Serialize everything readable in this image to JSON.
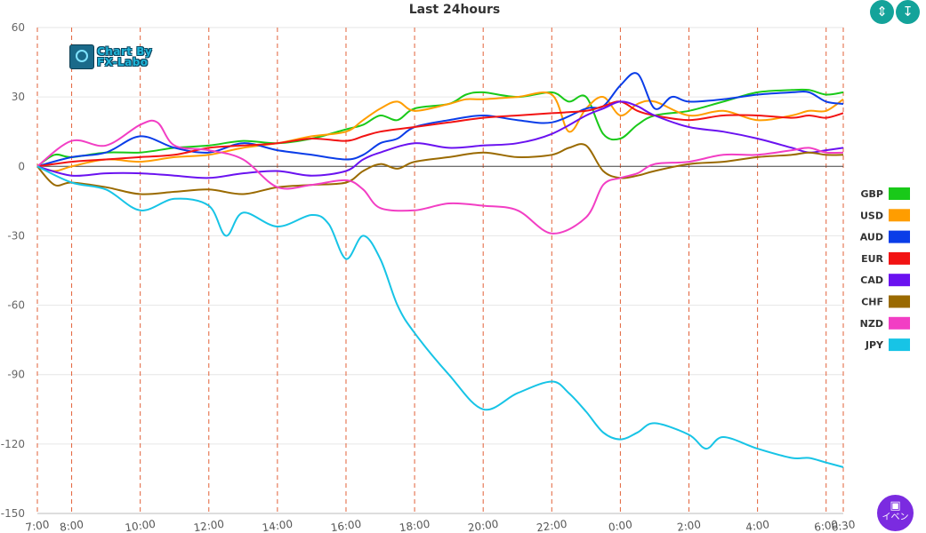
{
  "chart_data": {
    "type": "line",
    "title": "Last 24hours",
    "ylim": [
      -150,
      60
    ],
    "yticks": [
      "60",
      "30",
      "0",
      "-30",
      "-60",
      "-90",
      "-120",
      "-150"
    ],
    "xlim": [
      0,
      23.5
    ],
    "x_tick_labels": [
      {
        "x": 0,
        "label": "7:00"
      },
      {
        "x": 1,
        "label": "8:00"
      },
      {
        "x": 3,
        "label": "10:00"
      },
      {
        "x": 5,
        "label": "12:00"
      },
      {
        "x": 7,
        "label": "14:00"
      },
      {
        "x": 9,
        "label": "16:00"
      },
      {
        "x": 11,
        "label": "18:00"
      },
      {
        "x": 13,
        "label": "20:00"
      },
      {
        "x": 15,
        "label": "22:00"
      },
      {
        "x": 17,
        "label": "0:00"
      },
      {
        "x": 19,
        "label": "2:00"
      },
      {
        "x": 21,
        "label": "4:00"
      },
      {
        "x": 23,
        "label": "6:00"
      },
      {
        "x": 23.5,
        "label": "6:30"
      }
    ],
    "vertical_gridlines_x": [
      0,
      1,
      3,
      5,
      7,
      9,
      11,
      13,
      15,
      17,
      19,
      21,
      23,
      23.5
    ],
    "legend_position": "right",
    "series": [
      {
        "name": "GBP",
        "color": "#19c919",
        "points": [
          [
            0,
            0
          ],
          [
            0.5,
            5
          ],
          [
            1,
            4
          ],
          [
            2,
            6
          ],
          [
            3,
            6
          ],
          [
            4,
            8
          ],
          [
            5,
            9
          ],
          [
            6,
            11
          ],
          [
            7,
            10
          ],
          [
            8,
            12
          ],
          [
            9,
            16
          ],
          [
            9.5,
            18
          ],
          [
            10,
            22
          ],
          [
            10.5,
            20
          ],
          [
            11,
            25
          ],
          [
            12,
            27
          ],
          [
            12.5,
            31
          ],
          [
            13,
            32
          ],
          [
            14,
            30
          ],
          [
            15,
            32
          ],
          [
            15.5,
            28
          ],
          [
            16,
            30
          ],
          [
            16.5,
            14
          ],
          [
            17,
            12
          ],
          [
            17.5,
            18
          ],
          [
            18,
            22
          ],
          [
            19,
            24
          ],
          [
            20,
            28
          ],
          [
            21,
            32
          ],
          [
            22,
            33
          ],
          [
            22.5,
            33
          ],
          [
            23,
            31
          ],
          [
            23.5,
            32
          ]
        ]
      },
      {
        "name": "USD",
        "color": "#ff9d00",
        "points": [
          [
            0,
            0
          ],
          [
            0.5,
            -2
          ],
          [
            1,
            0
          ],
          [
            2,
            3
          ],
          [
            3,
            2
          ],
          [
            4,
            4
          ],
          [
            5,
            5
          ],
          [
            6,
            8
          ],
          [
            7,
            10
          ],
          [
            8,
            13
          ],
          [
            9,
            15
          ],
          [
            9.5,
            20
          ],
          [
            10,
            25
          ],
          [
            10.5,
            28
          ],
          [
            11,
            24
          ],
          [
            12,
            27
          ],
          [
            12.5,
            29
          ],
          [
            13,
            29
          ],
          [
            14,
            30
          ],
          [
            15,
            31
          ],
          [
            15.5,
            15
          ],
          [
            16,
            25
          ],
          [
            16.5,
            30
          ],
          [
            17,
            22
          ],
          [
            17.5,
            27
          ],
          [
            18,
            28
          ],
          [
            19,
            22
          ],
          [
            20,
            24
          ],
          [
            21,
            20
          ],
          [
            22,
            22
          ],
          [
            22.5,
            24
          ],
          [
            23,
            24
          ],
          [
            23.5,
            29
          ]
        ]
      },
      {
        "name": "AUD",
        "color": "#0a3de8",
        "points": [
          [
            0,
            0
          ],
          [
            1,
            4
          ],
          [
            2,
            6
          ],
          [
            3,
            13
          ],
          [
            4,
            8
          ],
          [
            5,
            6
          ],
          [
            6,
            10
          ],
          [
            7,
            7
          ],
          [
            8,
            5
          ],
          [
            9,
            3
          ],
          [
            9.5,
            5
          ],
          [
            10,
            10
          ],
          [
            10.5,
            12
          ],
          [
            11,
            17
          ],
          [
            12,
            20
          ],
          [
            13,
            22
          ],
          [
            14,
            20
          ],
          [
            15,
            19
          ],
          [
            16,
            25
          ],
          [
            16.5,
            26
          ],
          [
            17,
            35
          ],
          [
            17.5,
            40
          ],
          [
            18,
            25
          ],
          [
            18.5,
            30
          ],
          [
            19,
            28
          ],
          [
            20,
            29
          ],
          [
            21,
            31
          ],
          [
            22,
            32
          ],
          [
            22.5,
            32
          ],
          [
            23,
            28
          ],
          [
            23.5,
            27
          ]
        ]
      },
      {
        "name": "EUR",
        "color": "#f21313",
        "points": [
          [
            0,
            0
          ],
          [
            1,
            2
          ],
          [
            2,
            3
          ],
          [
            3,
            4
          ],
          [
            4,
            5
          ],
          [
            5,
            8
          ],
          [
            6,
            9
          ],
          [
            7,
            10
          ],
          [
            8,
            12
          ],
          [
            9,
            11
          ],
          [
            9.5,
            13
          ],
          [
            10,
            15
          ],
          [
            11,
            17
          ],
          [
            12,
            19
          ],
          [
            13,
            21
          ],
          [
            14,
            22
          ],
          [
            15,
            23
          ],
          [
            16,
            24
          ],
          [
            16.5,
            26
          ],
          [
            17,
            28
          ],
          [
            17.5,
            24
          ],
          [
            18,
            22
          ],
          [
            19,
            20
          ],
          [
            20,
            22
          ],
          [
            21,
            22
          ],
          [
            22,
            21
          ],
          [
            22.5,
            22
          ],
          [
            23,
            21
          ],
          [
            23.5,
            23
          ]
        ]
      },
      {
        "name": "CAD",
        "color": "#6a12f0",
        "points": [
          [
            0,
            0
          ],
          [
            1,
            -4
          ],
          [
            2,
            -3
          ],
          [
            3,
            -3
          ],
          [
            4,
            -4
          ],
          [
            5,
            -5
          ],
          [
            6,
            -3
          ],
          [
            7,
            -2
          ],
          [
            8,
            -4
          ],
          [
            9,
            -2
          ],
          [
            9.5,
            3
          ],
          [
            10,
            6
          ],
          [
            11,
            10
          ],
          [
            12,
            8
          ],
          [
            13,
            9
          ],
          [
            14,
            10
          ],
          [
            15,
            14
          ],
          [
            16,
            22
          ],
          [
            16.5,
            25
          ],
          [
            17,
            28
          ],
          [
            17.5,
            26
          ],
          [
            18,
            22
          ],
          [
            19,
            17
          ],
          [
            20,
            15
          ],
          [
            21,
            12
          ],
          [
            22,
            8
          ],
          [
            22.5,
            6
          ],
          [
            23,
            7
          ],
          [
            23.5,
            8
          ]
        ]
      },
      {
        "name": "CHF",
        "color": "#9a6a00",
        "points": [
          [
            0,
            0
          ],
          [
            0.5,
            -8
          ],
          [
            1,
            -7
          ],
          [
            2,
            -9
          ],
          [
            3,
            -12
          ],
          [
            4,
            -11
          ],
          [
            5,
            -10
          ],
          [
            6,
            -12
          ],
          [
            7,
            -9
          ],
          [
            8,
            -8
          ],
          [
            9,
            -7
          ],
          [
            9.5,
            -2
          ],
          [
            10,
            1
          ],
          [
            10.5,
            -1
          ],
          [
            11,
            2
          ],
          [
            12,
            4
          ],
          [
            13,
            6
          ],
          [
            14,
            4
          ],
          [
            15,
            5
          ],
          [
            15.5,
            8
          ],
          [
            16,
            9
          ],
          [
            16.5,
            -2
          ],
          [
            17,
            -5
          ],
          [
            17.5,
            -4
          ],
          [
            18,
            -2
          ],
          [
            19,
            1
          ],
          [
            20,
            2
          ],
          [
            21,
            4
          ],
          [
            22,
            5
          ],
          [
            22.5,
            6
          ],
          [
            23,
            5
          ],
          [
            23.5,
            5
          ]
        ]
      },
      {
        "name": "NZD",
        "color": "#f23ec4",
        "points": [
          [
            0,
            0
          ],
          [
            1,
            11
          ],
          [
            2,
            9
          ],
          [
            3,
            18
          ],
          [
            3.5,
            19
          ],
          [
            4,
            9
          ],
          [
            5,
            7
          ],
          [
            6,
            3
          ],
          [
            7,
            -9
          ],
          [
            8,
            -8
          ],
          [
            9,
            -6
          ],
          [
            9.5,
            -10
          ],
          [
            10,
            -18
          ],
          [
            11,
            -19
          ],
          [
            12,
            -16
          ],
          [
            13,
            -17
          ],
          [
            14,
            -19
          ],
          [
            15,
            -29
          ],
          [
            16,
            -22
          ],
          [
            16.5,
            -8
          ],
          [
            17,
            -5
          ],
          [
            17.5,
            -3
          ],
          [
            18,
            1
          ],
          [
            19,
            2
          ],
          [
            20,
            5
          ],
          [
            21,
            5
          ],
          [
            22,
            7
          ],
          [
            22.5,
            8
          ],
          [
            23,
            6
          ],
          [
            23.5,
            6
          ]
        ]
      },
      {
        "name": "JPY",
        "color": "#17c4e6",
        "points": [
          [
            0,
            0
          ],
          [
            1,
            -7
          ],
          [
            2,
            -10
          ],
          [
            3,
            -19
          ],
          [
            4,
            -14
          ],
          [
            5,
            -17
          ],
          [
            5.5,
            -30
          ],
          [
            6,
            -20
          ],
          [
            7,
            -26
          ],
          [
            8,
            -21
          ],
          [
            8.5,
            -25
          ],
          [
            9,
            -40
          ],
          [
            9.5,
            -30
          ],
          [
            10,
            -40
          ],
          [
            10.5,
            -60
          ],
          [
            11,
            -72
          ],
          [
            12,
            -90
          ],
          [
            13,
            -105
          ],
          [
            14,
            -98
          ],
          [
            15,
            -93
          ],
          [
            15.5,
            -98
          ],
          [
            16,
            -106
          ],
          [
            16.5,
            -115
          ],
          [
            17,
            -118
          ],
          [
            17.5,
            -115
          ],
          [
            18,
            -111
          ],
          [
            19,
            -116
          ],
          [
            19.5,
            -122
          ],
          [
            20,
            -117
          ],
          [
            21,
            -122
          ],
          [
            22,
            -126
          ],
          [
            22.5,
            -126
          ],
          [
            23,
            -128
          ],
          [
            23.5,
            -130
          ]
        ]
      }
    ]
  },
  "logo": {
    "line1": "Chart By",
    "line2": "FX-Labo"
  },
  "toolbar": {
    "compress_icon": "compress-icon",
    "expand_icon": "expand-icon"
  },
  "event_button": {
    "label": "イベン",
    "icon": "calendar-icon"
  }
}
